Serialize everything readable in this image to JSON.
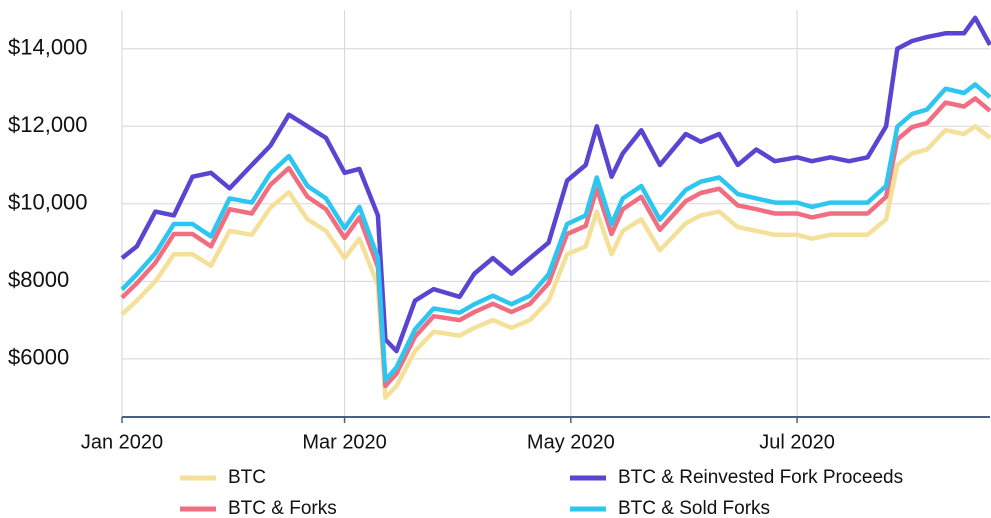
{
  "chart_data": {
    "type": "line",
    "x": [
      "2020-01-01",
      "2020-01-05",
      "2020-01-10",
      "2020-01-15",
      "2020-01-20",
      "2020-01-25",
      "2020-01-30",
      "2020-02-05",
      "2020-02-10",
      "2020-02-15",
      "2020-02-20",
      "2020-02-25",
      "2020-03-01",
      "2020-03-05",
      "2020-03-10",
      "2020-03-12",
      "2020-03-15",
      "2020-03-20",
      "2020-03-25",
      "2020-04-01",
      "2020-04-05",
      "2020-04-10",
      "2020-04-15",
      "2020-04-20",
      "2020-04-25",
      "2020-04-30",
      "2020-05-05",
      "2020-05-08",
      "2020-05-12",
      "2020-05-15",
      "2020-05-20",
      "2020-05-25",
      "2020-06-01",
      "2020-06-05",
      "2020-06-10",
      "2020-06-15",
      "2020-06-20",
      "2020-06-25",
      "2020-07-01",
      "2020-07-05",
      "2020-07-10",
      "2020-07-15",
      "2020-07-20",
      "2020-07-25",
      "2020-07-28",
      "2020-08-01",
      "2020-08-05",
      "2020-08-10",
      "2020-08-15",
      "2020-08-18",
      "2020-08-22"
    ],
    "series": [
      {
        "name": "BTC",
        "color": "#f5e09a",
        "values": [
          7150,
          7500,
          8000,
          8700,
          8700,
          8400,
          9300,
          9200,
          9900,
          10300,
          9600,
          9300,
          8600,
          9100,
          7900,
          5000,
          5300,
          6200,
          6700,
          6600,
          6800,
          7000,
          6800,
          7000,
          7500,
          8700,
          8900,
          9800,
          8700,
          9300,
          9600,
          8800,
          9500,
          9700,
          9800,
          9400,
          9300,
          9200,
          9200,
          9100,
          9200,
          9200,
          9200,
          9600,
          11000,
          11300,
          11400,
          11900,
          11800,
          12000,
          11700
        ]
      },
      {
        "name": "BTC & Reinvested Fork Proceeds",
        "color": "#5a45d2",
        "values": [
          8600,
          8900,
          9800,
          9700,
          10700,
          10800,
          10400,
          11000,
          11500,
          12300,
          12000,
          11700,
          10800,
          10900,
          9700,
          6500,
          6200,
          7500,
          7800,
          7600,
          8200,
          8600,
          8200,
          8600,
          9000,
          10600,
          11000,
          12000,
          10700,
          11300,
          11900,
          11000,
          11800,
          11600,
          11800,
          11000,
          11400,
          11100,
          11200,
          11100,
          11200,
          11100,
          11200,
          12000,
          14000,
          14200,
          14300,
          14400,
          14400,
          14800,
          14100
        ]
      },
      {
        "name": "BTC & Forks",
        "color": "#f06e80",
        "values": [
          7580,
          7950,
          8480,
          9220,
          9220,
          8900,
          9860,
          9750,
          10490,
          10920,
          10180,
          9860,
          9120,
          9650,
          8370,
          5300,
          5620,
          6570,
          7100,
          7000,
          7210,
          7420,
          7210,
          7420,
          7950,
          9220,
          9430,
          10390,
          9220,
          9860,
          10180,
          9330,
          10070,
          10280,
          10390,
          9960,
          9860,
          9750,
          9750,
          9650,
          9750,
          9750,
          9750,
          10180,
          11660,
          11980,
          12080,
          12610,
          12510,
          12720,
          12400
        ]
      },
      {
        "name": "BTC & Sold Forks",
        "color": "#2cc6f0",
        "values": [
          7790,
          8180,
          8720,
          9480,
          9480,
          9160,
          10140,
          10030,
          10790,
          11230,
          10460,
          10140,
          9370,
          9920,
          8610,
          5450,
          5780,
          6760,
          7300,
          7190,
          7410,
          7630,
          7410,
          7630,
          8180,
          9480,
          9700,
          10680,
          9480,
          10140,
          10460,
          9590,
          10360,
          10570,
          10680,
          10250,
          10140,
          10030,
          10030,
          9920,
          10030,
          10030,
          10030,
          10460,
          11990,
          12320,
          12430,
          12970,
          12860,
          13080,
          12750
        ]
      }
    ],
    "xlim": [
      "2020-01-01",
      "2020-08-22"
    ],
    "xticks": [
      {
        "value": "2020-01-01",
        "label": "Jan 2020"
      },
      {
        "value": "2020-03-01",
        "label": "Mar 2020"
      },
      {
        "value": "2020-05-01",
        "label": "May 2020"
      },
      {
        "value": "2020-07-01",
        "label": "Jul 2020"
      }
    ],
    "ylim": [
      4500,
      15000
    ],
    "yticks": [
      {
        "value": 6000,
        "label": "$6000"
      },
      {
        "value": 8000,
        "label": "$8000"
      },
      {
        "value": 10000,
        "label": "$10,000"
      },
      {
        "value": 12000,
        "label": "$12,000"
      },
      {
        "value": 14000,
        "label": "$14,000"
      }
    ],
    "grid": true,
    "legend": "bottom"
  }
}
